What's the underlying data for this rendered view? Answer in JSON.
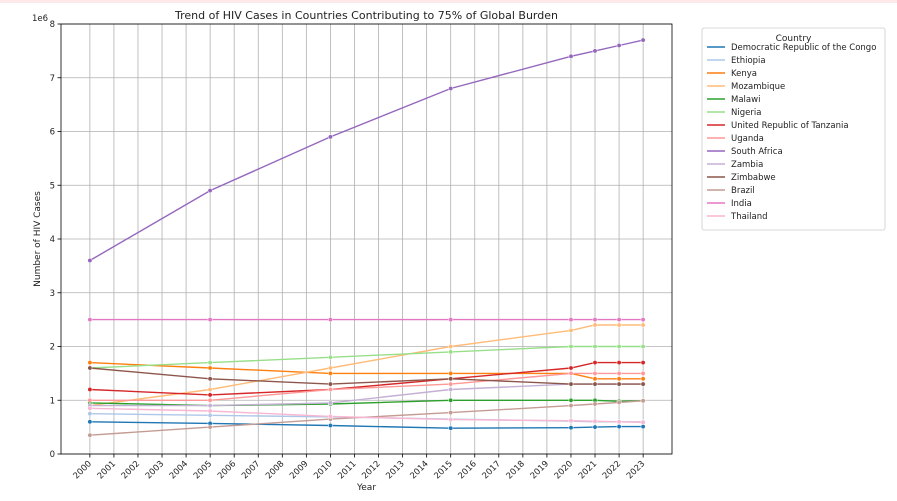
{
  "chart_data": {
    "type": "line",
    "title": "Trend of HIV Cases in Countries Contributing to 75% of Global Burden",
    "xlabel": "Year",
    "ylabel": "Number of HIV Cases",
    "offset_label": "1e6",
    "ylim": [
      0,
      8000000
    ],
    "yticks": [
      0,
      1000000,
      2000000,
      3000000,
      4000000,
      5000000,
      6000000,
      7000000,
      8000000
    ],
    "ytick_labels": [
      "0",
      "1",
      "2",
      "3",
      "4",
      "5",
      "6",
      "7",
      "8"
    ],
    "xlim": [
      1998.8,
      2024.2
    ],
    "xticks": [
      2000,
      2001,
      2002,
      2003,
      2004,
      2005,
      2006,
      2007,
      2008,
      2009,
      2010,
      2011,
      2012,
      2013,
      2014,
      2015,
      2016,
      2017,
      2018,
      2019,
      2020,
      2021,
      2022,
      2023
    ],
    "xtick_labels": [
      "2000",
      "2001",
      "2002",
      "2003",
      "2004",
      "2005",
      "2006",
      "2007",
      "2008",
      "2009",
      "2010",
      "2011",
      "2012",
      "2013",
      "2014",
      "2015",
      "2016",
      "2017",
      "2018",
      "2019",
      "2020",
      "2021",
      "2022",
      "2023"
    ],
    "grid": true,
    "legend": {
      "title": "Country",
      "placement": "outside-right"
    },
    "x": [
      2000,
      2005,
      2010,
      2015,
      2020,
      2021,
      2022,
      2023
    ],
    "series": [
      {
        "name": "Democratic Republic of the Congo",
        "color": "#1f77b4",
        "values": [
          600000,
          570000,
          530000,
          480000,
          490000,
          500000,
          510000,
          510000
        ]
      },
      {
        "name": "Ethiopia",
        "color": "#aec7e8",
        "values": [
          750000,
          720000,
          690000,
          650000,
          610000,
          600000,
          600000,
          600000
        ]
      },
      {
        "name": "Kenya",
        "color": "#ff7f0e",
        "values": [
          1700000,
          1600000,
          1500000,
          1500000,
          1500000,
          1400000,
          1400000,
          1400000
        ]
      },
      {
        "name": "Mozambique",
        "color": "#ffbb78",
        "values": [
          900000,
          1200000,
          1600000,
          2000000,
          2300000,
          2400000,
          2400000,
          2400000
        ]
      },
      {
        "name": "Malawi",
        "color": "#2ca02c",
        "values": [
          950000,
          900000,
          930000,
          1000000,
          1000000,
          1000000,
          980000,
          990000
        ]
      },
      {
        "name": "Nigeria",
        "color": "#98df8a",
        "values": [
          1600000,
          1700000,
          1800000,
          1900000,
          2000000,
          2000000,
          2000000,
          2000000
        ]
      },
      {
        "name": "United Republic of Tanzania",
        "color": "#d62728",
        "values": [
          1200000,
          1100000,
          1200000,
          1400000,
          1600000,
          1700000,
          1700000,
          1700000
        ]
      },
      {
        "name": "Uganda",
        "color": "#ff9896",
        "values": [
          1000000,
          1000000,
          1200000,
          1300000,
          1500000,
          1500000,
          1500000,
          1500000
        ]
      },
      {
        "name": "South Africa",
        "color": "#9467bd",
        "values": [
          3600000,
          4900000,
          5900000,
          6800000,
          7400000,
          7500000,
          7600000,
          7700000
        ]
      },
      {
        "name": "Zambia",
        "color": "#c5b0d5",
        "values": [
          900000,
          900000,
          950000,
          1200000,
          1300000,
          1300000,
          1300000,
          1300000
        ]
      },
      {
        "name": "Zimbabwe",
        "color": "#8c564b",
        "values": [
          1600000,
          1400000,
          1300000,
          1400000,
          1300000,
          1300000,
          1300000,
          1300000
        ]
      },
      {
        "name": "Brazil",
        "color": "#c49c94",
        "values": [
          350000,
          500000,
          650000,
          770000,
          900000,
          930000,
          960000,
          990000
        ]
      },
      {
        "name": "India",
        "color": "#e377c2",
        "values": [
          2500000,
          2500000,
          2500000,
          2500000,
          2500000,
          2500000,
          2500000,
          2500000
        ]
      },
      {
        "name": "Thailand",
        "color": "#f7b6d2",
        "values": [
          850000,
          800000,
          700000,
          640000,
          620000,
          610000,
          600000,
          590000
        ]
      }
    ]
  }
}
